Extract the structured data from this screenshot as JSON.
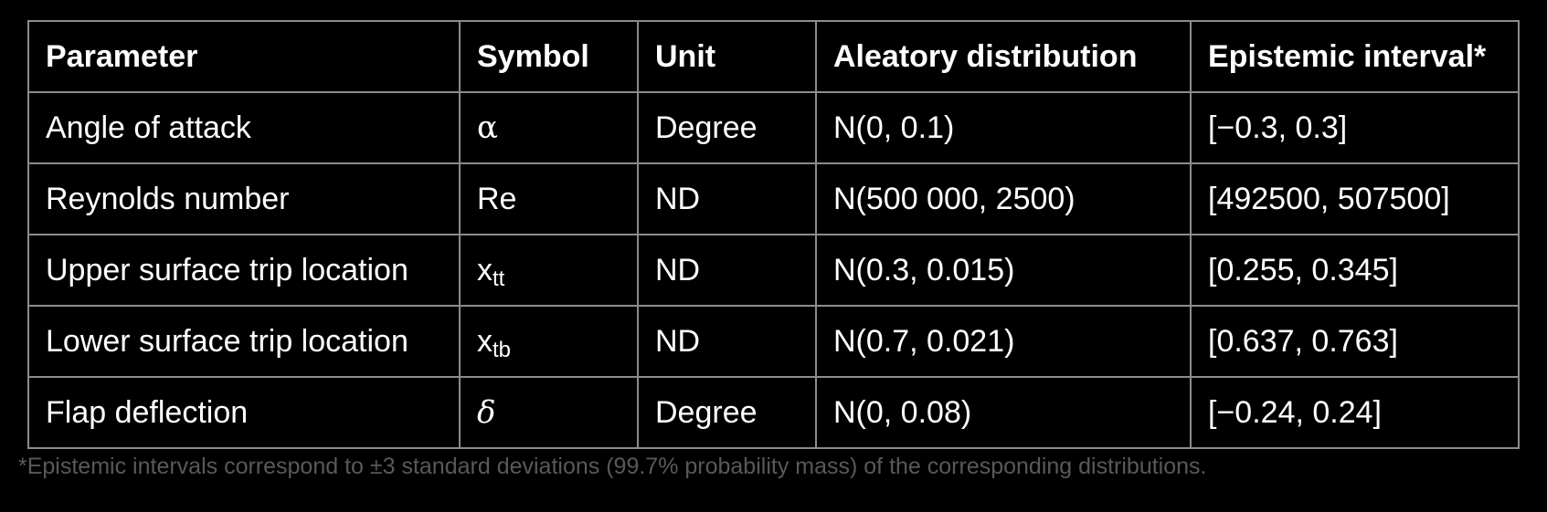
{
  "table": {
    "headers": [
      "Parameter",
      "Symbol",
      "Unit",
      "Aleatory distribution",
      "Epistemic interval*"
    ],
    "rows": [
      {
        "parameter": "Angle of attack",
        "symbol": "α",
        "symbol_sub": "",
        "unit": "Degree",
        "distribution": "N(0, 0.1)",
        "interval": "[−0.3, 0.3]"
      },
      {
        "parameter": "Reynolds number",
        "symbol": "Re",
        "symbol_sub": "",
        "unit": "ND",
        "distribution": "N(500 000, 2500)",
        "interval": "[492500, 507500]"
      },
      {
        "parameter": "Upper surface trip location",
        "symbol": "x",
        "symbol_sub": "tt",
        "unit": "ND",
        "distribution": "N(0.3, 0.015)",
        "interval": "[0.255, 0.345]"
      },
      {
        "parameter": "Lower surface trip location",
        "symbol": "x",
        "symbol_sub": "tb",
        "unit": "ND",
        "distribution": "N(0.7, 0.021)",
        "interval": "[0.637, 0.763]"
      },
      {
        "parameter": "Flap deflection",
        "symbol": "δ",
        "symbol_sub": "",
        "unit": "Degree",
        "distribution": "N(0, 0.08)",
        "interval": "[−0.24, 0.24]"
      }
    ]
  },
  "footnote": "*Epistemic intervals correspond to ±3 standard deviations (99.7% probability mass) of the corresponding distributions."
}
